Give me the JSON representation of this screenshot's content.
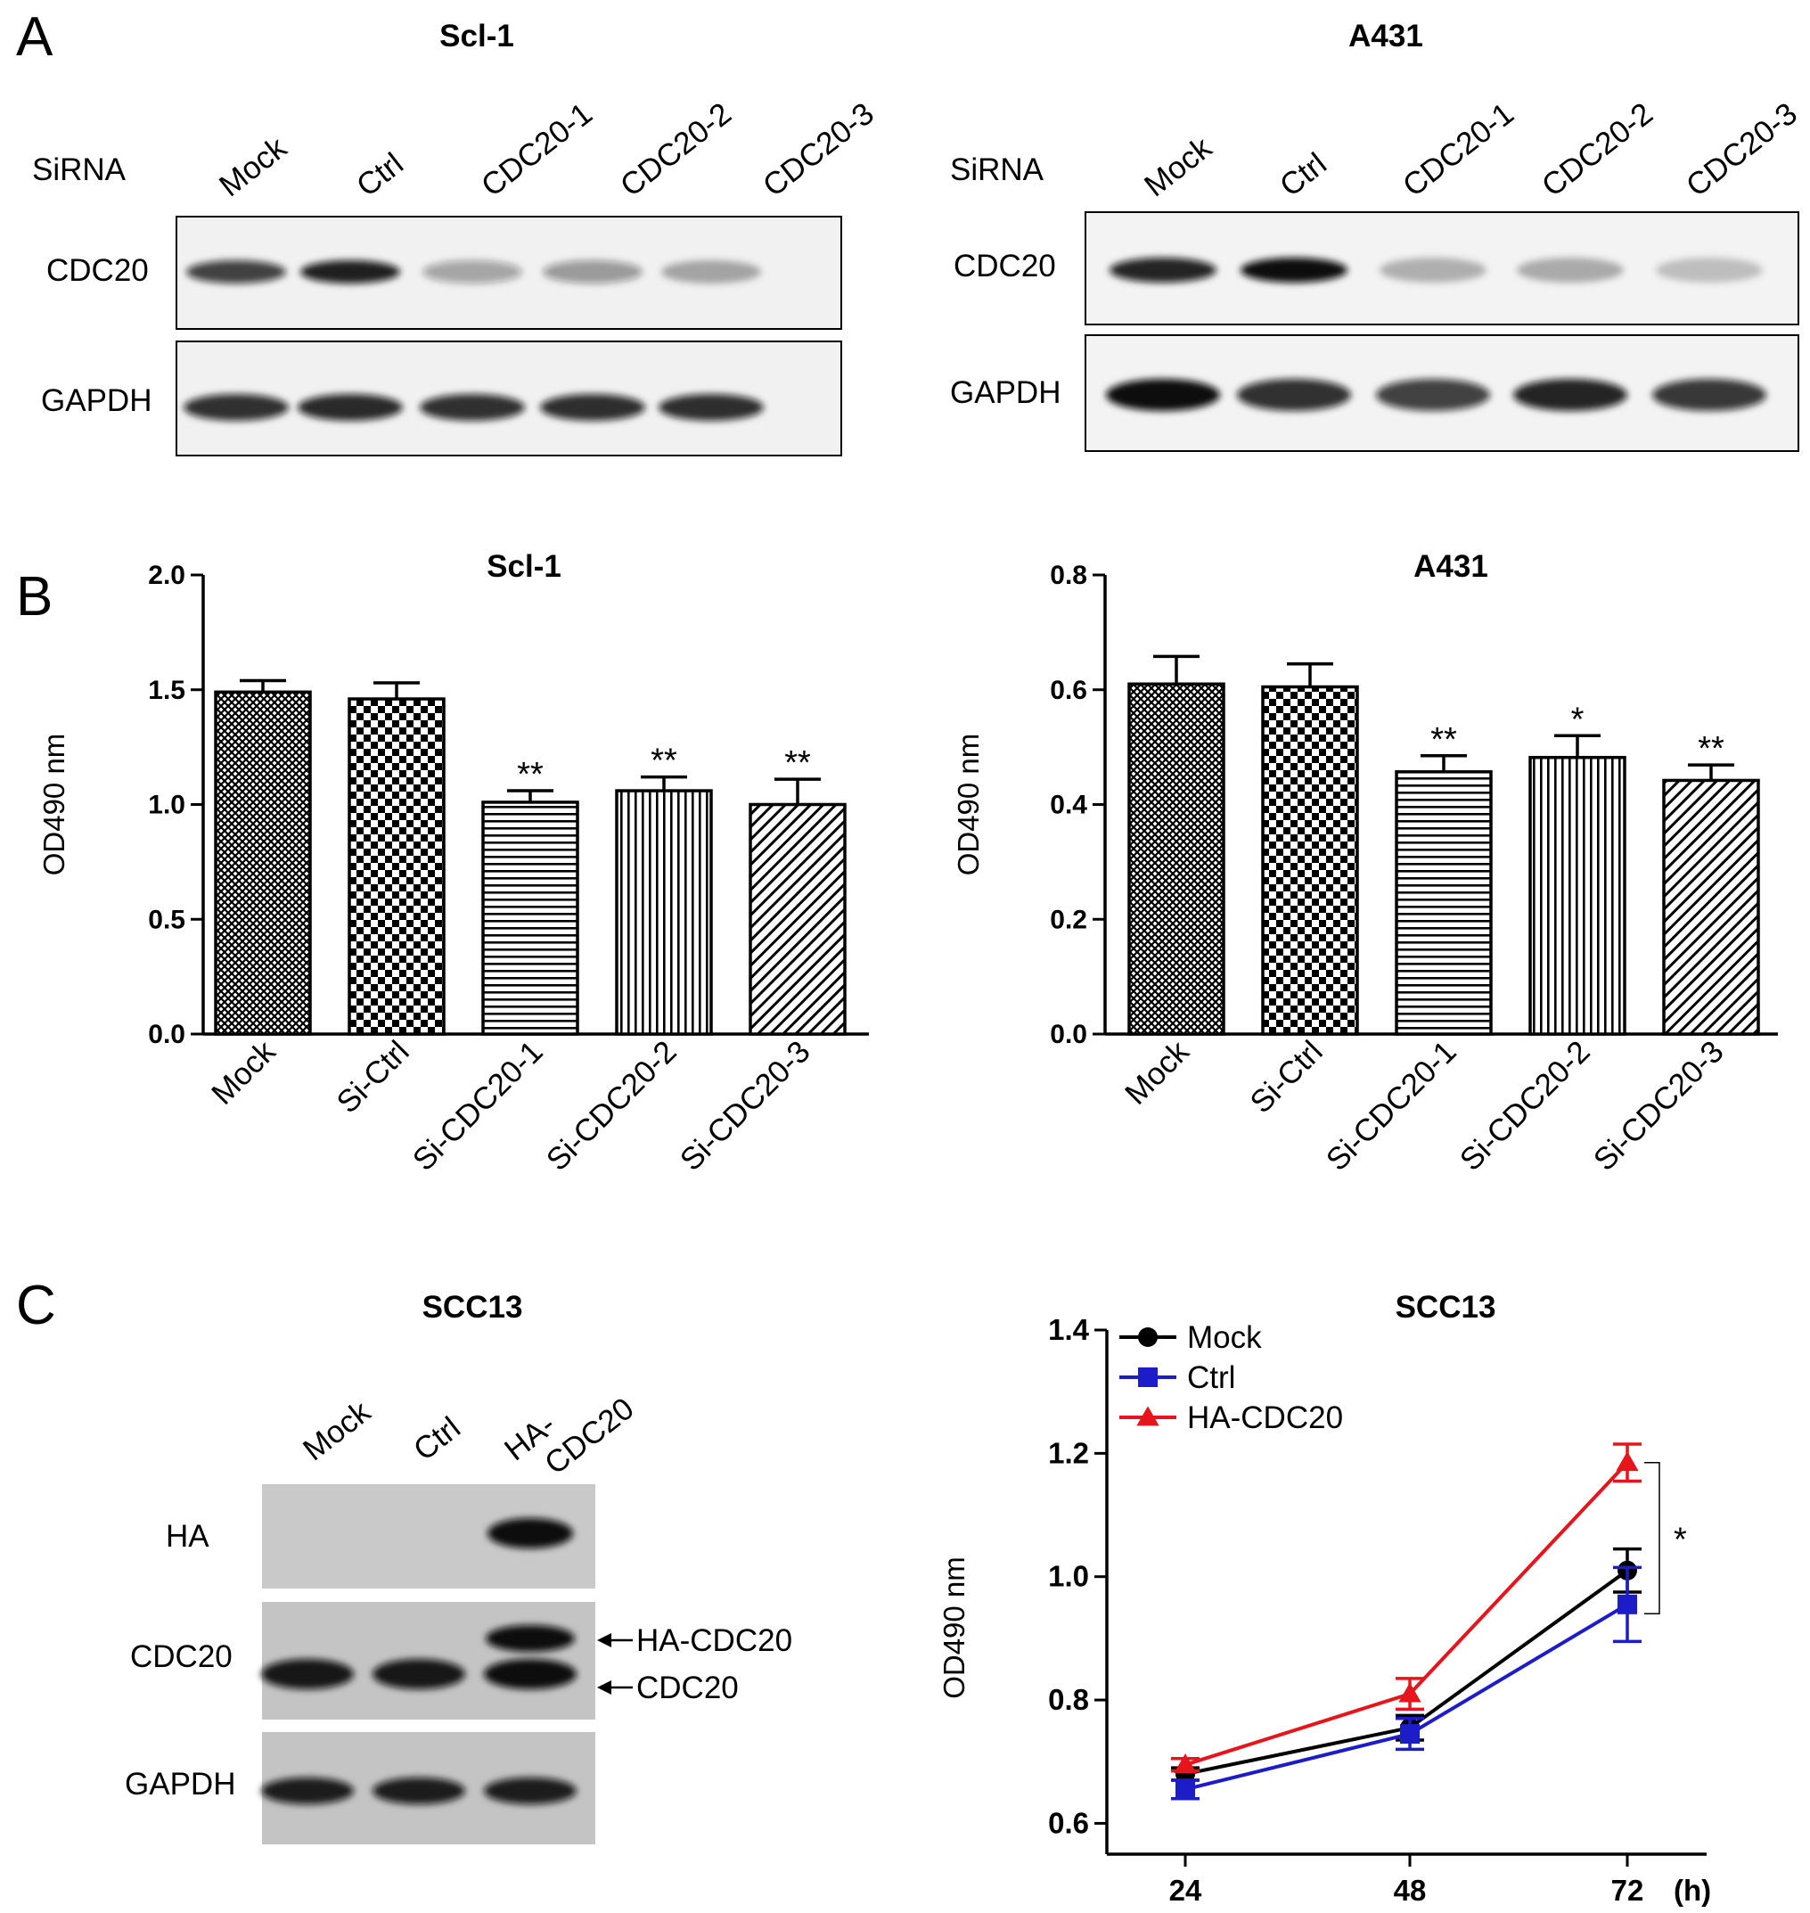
{
  "panels": {
    "A": {
      "letter": "A",
      "left": {
        "title": "Scl-1",
        "row_header": "SiRNA",
        "lanes": [
          "Mock",
          "Ctrl",
          "CDC20-1",
          "CDC20-2",
          "CDC20-3"
        ],
        "blots": [
          {
            "label": "CDC20",
            "band_intensity": [
              0.78,
              0.92,
              0.35,
              0.4,
              0.32
            ]
          },
          {
            "label": "GAPDH",
            "band_intensity": [
              0.85,
              0.88,
              0.85,
              0.86,
              0.86
            ]
          }
        ]
      },
      "right": {
        "title": "A431",
        "row_header": "SiRNA",
        "lanes": [
          "Mock",
          "Ctrl",
          "CDC20-1",
          "CDC20-2",
          "CDC20-3"
        ],
        "blots": [
          {
            "label": "CDC20",
            "band_intensity": [
              0.9,
              1.0,
              0.28,
              0.3,
              0.22
            ]
          },
          {
            "label": "GAPDH",
            "band_intensity": [
              1.0,
              0.85,
              0.78,
              0.9,
              0.82
            ]
          }
        ]
      }
    },
    "B": {
      "letter": "B"
    },
    "C": {
      "letter": "C",
      "blot": {
        "title": "SCC13",
        "lanes": [
          "Mock",
          "Ctrl",
          "HA-\nCDC20"
        ],
        "blots": [
          {
            "label": "HA",
            "band_intensity": [
              0.0,
              0.0,
              1.0
            ]
          },
          {
            "label": "CDC20",
            "band_intensity": [
              0.95,
              0.95,
              1.0
            ]
          },
          {
            "label": "GAPDH",
            "band_intensity": [
              0.92,
              0.92,
              0.92
            ]
          }
        ],
        "arrows": [
          "HA-CDC20",
          "CDC20"
        ]
      }
    }
  },
  "chart_data": [
    {
      "type": "bar",
      "title": "Scl-1",
      "ylabel": "OD490 nm",
      "xlabel": "",
      "categories": [
        "Mock",
        "Si-Ctrl",
        "Si-CDC20-1",
        "Si-CDC20-2",
        "Si-CDC20-3"
      ],
      "values": [
        1.49,
        1.46,
        1.01,
        1.06,
        1.0
      ],
      "errors": [
        0.05,
        0.07,
        0.05,
        0.06,
        0.11
      ],
      "significance": [
        "",
        "",
        "**",
        "**",
        "**"
      ],
      "patterns": [
        "crosshatch",
        "checker",
        "horizontal",
        "vertical",
        "diagonal"
      ],
      "ylim": [
        0,
        2.0
      ],
      "yticks": [
        "0.0",
        "0.5",
        "1.0",
        "1.5",
        "2.0"
      ],
      "grid": false
    },
    {
      "type": "bar",
      "title": "A431",
      "ylabel": "OD490 nm",
      "xlabel": "",
      "categories": [
        "Mock",
        "Si-Ctrl",
        "Si-CDC20-1",
        "Si-CDC20-2",
        "Si-CDC20-3"
      ],
      "values": [
        0.61,
        0.605,
        0.457,
        0.482,
        0.442
      ],
      "errors": [
        0.048,
        0.04,
        0.028,
        0.038,
        0.027
      ],
      "significance": [
        "",
        "",
        "**",
        "*",
        "**"
      ],
      "patterns": [
        "crosshatch",
        "checker",
        "horizontal",
        "vertical",
        "diagonal"
      ],
      "ylim": [
        0,
        0.8
      ],
      "yticks": [
        "0.0",
        "0.2",
        "0.4",
        "0.6",
        "0.8"
      ],
      "grid": false
    },
    {
      "type": "line",
      "title": "SCC13",
      "ylabel": "OD490 nm",
      "xlabel": "",
      "x_unit": "(h)",
      "x": [
        24,
        48,
        72
      ],
      "series": [
        {
          "name": "Mock",
          "values": [
            0.68,
            0.755,
            1.01
          ],
          "errors": [
            0.01,
            0.02,
            0.035
          ],
          "color": "#000000",
          "marker": "circle"
        },
        {
          "name": "Ctrl",
          "values": [
            0.655,
            0.745,
            0.955
          ],
          "errors": [
            0.015,
            0.025,
            0.06
          ],
          "color": "#1c1cc8",
          "marker": "square"
        },
        {
          "name": "HA-CDC20",
          "values": [
            0.695,
            0.81,
            1.185
          ],
          "errors": [
            0.01,
            0.025,
            0.03
          ],
          "color": "#e8141c",
          "marker": "triangle"
        }
      ],
      "ylim": [
        0.55,
        1.4
      ],
      "yticks": [
        "0.6",
        "0.8",
        "1.0",
        "1.2",
        "1.4"
      ],
      "xticks": [
        "24",
        "48",
        "72"
      ],
      "legend_position": "top-left",
      "significance": "*",
      "grid": false
    }
  ]
}
